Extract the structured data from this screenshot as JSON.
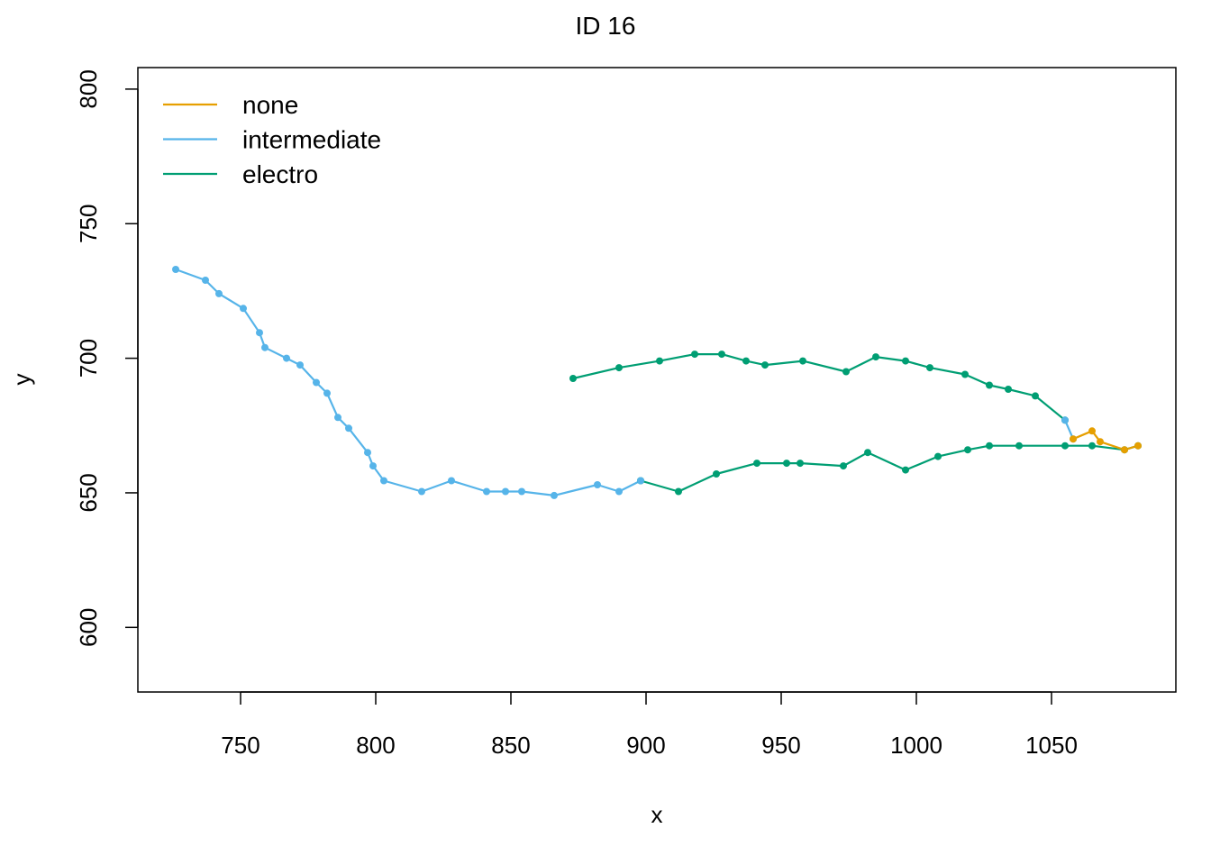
{
  "chart_data": {
    "type": "line",
    "title": "ID 16",
    "xlabel": "x",
    "ylabel": "y",
    "xlim": [
      712,
      1096
    ],
    "ylim": [
      576,
      808
    ],
    "xticks": [
      750,
      800,
      850,
      900,
      950,
      1000,
      1050
    ],
    "yticks": [
      600,
      650,
      700,
      750,
      800
    ],
    "xtick_labels": [
      "750",
      "800",
      "850",
      "900",
      "950",
      "1000",
      "1050"
    ],
    "ytick_labels": [
      "600",
      "650",
      "700",
      "750",
      "800"
    ],
    "grid": false,
    "legend_position": "top-left",
    "legend": [
      {
        "label": "none",
        "color": "#E69F00"
      },
      {
        "label": "intermediate",
        "color": "#56B4E9"
      },
      {
        "label": "electro",
        "color": "#009E73"
      }
    ],
    "segments": [
      {
        "series": "electro",
        "color": "#009E73",
        "points": [
          [
            1082,
            667.5
          ],
          [
            1077,
            666
          ],
          [
            1065,
            667.5
          ],
          [
            1055,
            667.5
          ],
          [
            1038,
            667.5
          ],
          [
            1027,
            667.5
          ],
          [
            1019,
            666
          ],
          [
            1008,
            663.5
          ],
          [
            996,
            658.5
          ],
          [
            982,
            665
          ],
          [
            973,
            660
          ],
          [
            957,
            661
          ],
          [
            952,
            661
          ],
          [
            941,
            661
          ],
          [
            926,
            657
          ],
          [
            912,
            650.5
          ],
          [
            898,
            654.5
          ]
        ]
      },
      {
        "series": "intermediate",
        "color": "#56B4E9",
        "points": [
          [
            898,
            654.5
          ],
          [
            890,
            650.5
          ],
          [
            882,
            653
          ],
          [
            866,
            649
          ],
          [
            854,
            650.5
          ],
          [
            848,
            650.5
          ],
          [
            841,
            650.5
          ],
          [
            828,
            654.5
          ],
          [
            817,
            650.5
          ],
          [
            803,
            654.5
          ],
          [
            799,
            660
          ],
          [
            797,
            665
          ],
          [
            790,
            674
          ],
          [
            786,
            678
          ],
          [
            782,
            687
          ],
          [
            778,
            691
          ],
          [
            772,
            697.5
          ],
          [
            767,
            700
          ],
          [
            759,
            704
          ],
          [
            757,
            709.5
          ],
          [
            751,
            718.5
          ],
          [
            742,
            724
          ],
          [
            737,
            729
          ],
          [
            726,
            733
          ]
        ]
      },
      {
        "series": "electro",
        "color": "#009E73",
        "points": [
          [
            873,
            692.5
          ],
          [
            890,
            696.5
          ],
          [
            905,
            699
          ],
          [
            918,
            701.5
          ],
          [
            928,
            701.5
          ],
          [
            937,
            699
          ],
          [
            944,
            697.5
          ],
          [
            958,
            699
          ],
          [
            974,
            695
          ],
          [
            985,
            700.5
          ],
          [
            996,
            699
          ],
          [
            1005,
            696.5
          ],
          [
            1018,
            694
          ],
          [
            1027,
            690
          ],
          [
            1034,
            688.5
          ],
          [
            1044,
            686
          ],
          [
            1055,
            677
          ]
        ]
      },
      {
        "series": "intermediate",
        "color": "#56B4E9",
        "points": [
          [
            1055,
            677
          ],
          [
            1058,
            670
          ]
        ]
      },
      {
        "series": "none",
        "color": "#E69F00",
        "points": [
          [
            1058,
            670
          ],
          [
            1065,
            673
          ],
          [
            1068,
            669
          ],
          [
            1077,
            666
          ],
          [
            1082,
            667.5
          ]
        ]
      }
    ]
  }
}
